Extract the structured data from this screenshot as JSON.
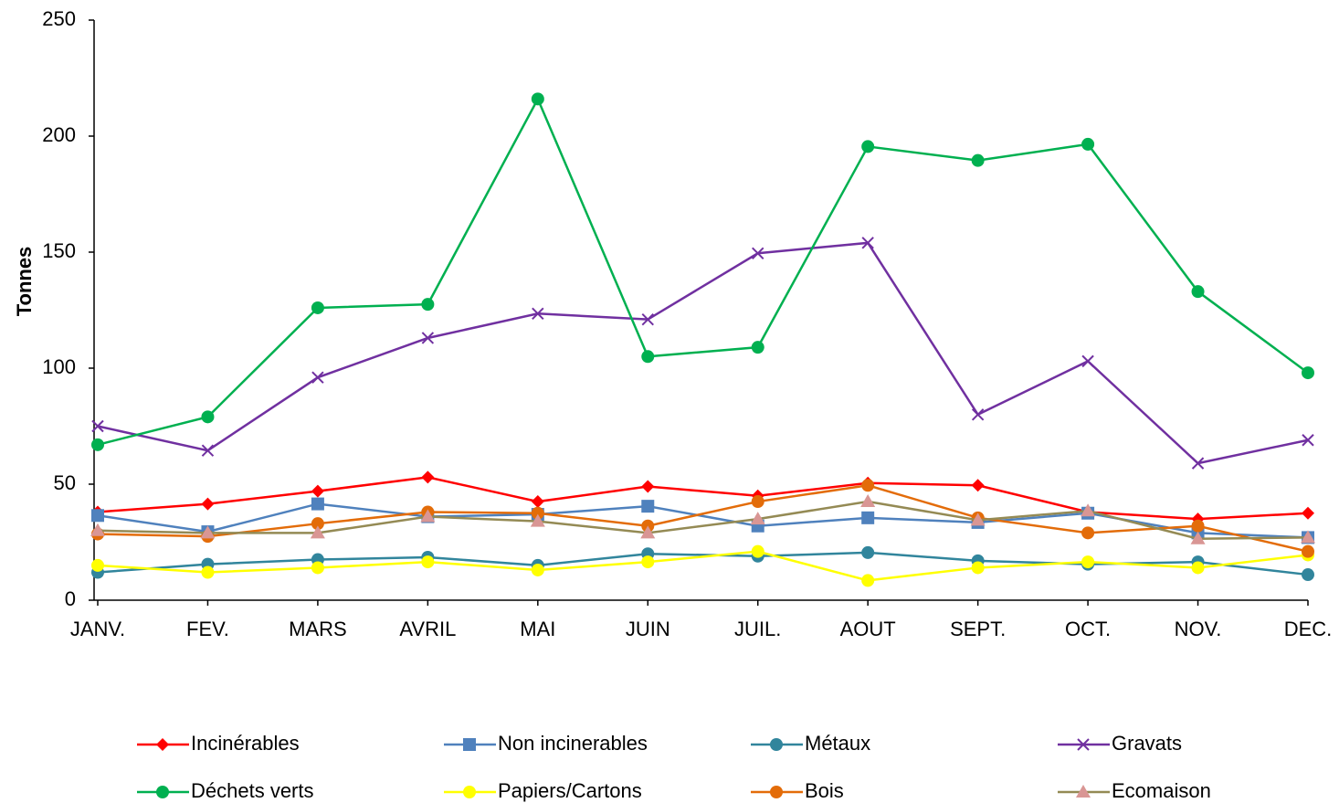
{
  "chart_data": {
    "type": "line",
    "y_label": "Tonnes",
    "categories": [
      "JANV.",
      "FEV.",
      "MARS",
      "AVRIL",
      "MAI",
      "JUIN",
      "JUIL.",
      "AOUT",
      "SEPT.",
      "OCT.",
      "NOV.",
      "DEC."
    ],
    "ylim": [
      0,
      250
    ],
    "yticks": [
      0,
      50,
      100,
      150,
      200,
      250
    ],
    "grid": false,
    "legend": "bottom",
    "series": [
      {
        "name": "Incinérables",
        "color": "#ff0000",
        "marker": "diamond",
        "values": [
          38,
          41.5,
          47,
          53,
          42.5,
          49,
          45,
          50.5,
          49.5,
          38,
          35,
          37.5
        ]
      },
      {
        "name": "Non incinerables",
        "color": "#4f81bd",
        "marker": "square",
        "values": [
          36.5,
          29.5,
          41.5,
          36,
          37,
          40.5,
          32,
          35.5,
          33.5,
          37.5,
          29,
          27
        ]
      },
      {
        "name": "Métaux",
        "color": "#31859c",
        "marker": "circle",
        "values": [
          12,
          15.5,
          17.5,
          18.5,
          15,
          20,
          19,
          20.5,
          17,
          15.5,
          16.5,
          11
        ]
      },
      {
        "name": "Gravats",
        "color": "#7030a0",
        "marker": "x",
        "values": [
          75,
          64.5,
          96,
          113,
          123.5,
          121,
          149.5,
          154,
          80,
          103,
          59,
          69
        ]
      },
      {
        "name": "Déchets verts",
        "color": "#00b050",
        "marker": "circle",
        "values": [
          67,
          79,
          126,
          127.5,
          216,
          105,
          109,
          195.5,
          189.5,
          196.5,
          133,
          98
        ]
      },
      {
        "name": "Papiers/Cartons",
        "color": "#ffff00",
        "marker": "circle",
        "values": [
          15,
          12,
          14,
          16.5,
          13,
          16.5,
          21,
          8.5,
          14,
          16.5,
          14,
          19.5
        ]
      },
      {
        "name": "Bois",
        "color": "#e36c09",
        "marker": "circle",
        "values": [
          28.5,
          27.5,
          33,
          38,
          37.5,
          32,
          42.5,
          49.5,
          35.5,
          29,
          32,
          21
        ]
      },
      {
        "name": "Ecomaison",
        "color": "#948a54",
        "marker": "triangle",
        "marker_color": "#d99694",
        "values": [
          30,
          29,
          29,
          36,
          34,
          29,
          35,
          42.5,
          34.5,
          38.5,
          26.5,
          27
        ]
      }
    ]
  }
}
